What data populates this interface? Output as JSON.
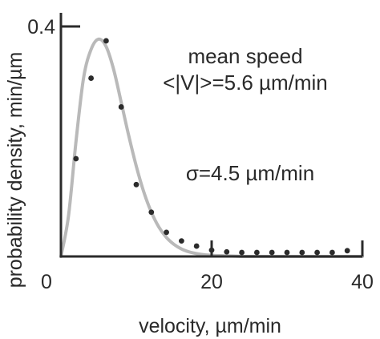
{
  "chart_data": {
    "type": "scatter",
    "title": "",
    "xlabel": "velocity, µm/min",
    "ylabel": "probability density, min/µm",
    "xlim": [
      0,
      42
    ],
    "ylim": [
      0,
      0.4
    ],
    "x_ticks": [
      0,
      20,
      40
    ],
    "y_ticks": [
      0.4
    ],
    "annotations": [
      "mean speed",
      "<|V|>=5.6 µm/min",
      "σ=4.5 µm/min"
    ],
    "series": [
      {
        "kind": "points",
        "x": [
          2,
          4,
          6,
          8,
          10,
          12,
          14,
          16,
          18,
          20,
          22,
          24,
          26,
          28,
          30,
          32,
          34,
          36,
          38
        ],
        "y": [
          0.17,
          0.31,
          0.375,
          0.26,
          0.125,
          0.077,
          0.042,
          0.027,
          0.018,
          0.011,
          0.008,
          0.007,
          0.007,
          0.007,
          0.007,
          0.007,
          0.007,
          0.007,
          0.01
        ]
      },
      {
        "kind": "curve",
        "x": [
          0,
          1,
          2,
          3,
          4,
          5,
          6,
          7,
          8,
          9,
          10,
          11,
          12,
          13,
          14,
          15,
          16,
          17,
          18,
          19,
          20,
          22,
          24,
          26,
          28,
          30,
          32,
          34,
          36,
          38,
          40
        ],
        "y": [
          0,
          0.07,
          0.2,
          0.31,
          0.36,
          0.378,
          0.365,
          0.325,
          0.268,
          0.21,
          0.157,
          0.112,
          0.077,
          0.051,
          0.033,
          0.021,
          0.013,
          0.008,
          0.005,
          0.003,
          0.002,
          0.001,
          0,
          0,
          0,
          0,
          0,
          0,
          0,
          0,
          0
        ]
      }
    ]
  },
  "colors": {
    "curve": "#b9b9b9",
    "points": "#2b2b2b",
    "axis": "#2b2b2b"
  }
}
